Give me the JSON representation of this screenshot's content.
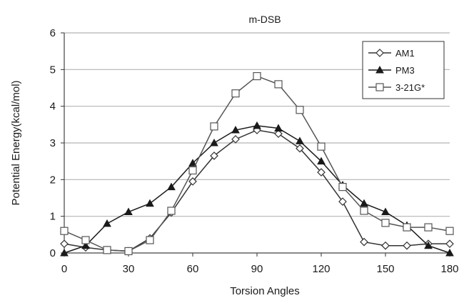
{
  "chart_data": {
    "type": "line",
    "title": "m-DSB",
    "xlabel": "Torsion Angles",
    "ylabel": "Potential Energy(kcal/mol)",
    "xlim": [
      0,
      180
    ],
    "ylim": [
      0,
      6
    ],
    "xticks": [
      "0",
      "30",
      "60",
      "90",
      "120",
      "150",
      "180"
    ],
    "yticks": [
      "0",
      "1",
      "2",
      "3",
      "4",
      "5",
      "6"
    ],
    "grid": "horizontal",
    "legend_position": "top-right",
    "x": [
      0,
      10,
      20,
      30,
      40,
      50,
      60,
      70,
      80,
      90,
      100,
      110,
      120,
      130,
      140,
      150,
      160,
      170,
      180
    ],
    "series": [
      {
        "name": "AM1",
        "marker": "diamond",
        "color": "#333333",
        "values": [
          0.25,
          0.15,
          0.08,
          0.05,
          0.4,
          1.1,
          1.95,
          2.65,
          3.1,
          3.35,
          3.25,
          2.85,
          2.2,
          1.4,
          0.3,
          0.2,
          0.2,
          0.25,
          0.25
        ]
      },
      {
        "name": "PM3",
        "marker": "triangle",
        "color": "#1a1a1a",
        "values": [
          0.0,
          0.2,
          0.8,
          1.12,
          1.35,
          1.8,
          2.45,
          3.0,
          3.35,
          3.47,
          3.4,
          3.05,
          2.5,
          1.85,
          1.35,
          1.12,
          0.75,
          0.2,
          0.0
        ]
      },
      {
        "name": "3-21G*",
        "marker": "square",
        "color": "#555555",
        "values": [
          0.6,
          0.35,
          0.08,
          0.05,
          0.35,
          1.15,
          2.25,
          3.45,
          4.35,
          4.82,
          4.6,
          3.9,
          2.9,
          1.8,
          1.15,
          0.82,
          0.7,
          0.7,
          0.6
        ]
      }
    ]
  }
}
